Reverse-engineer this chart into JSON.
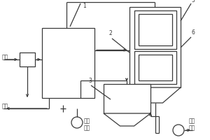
{
  "bg_color": "#ffffff",
  "line_color": "#3a3a3a",
  "lw": 0.9,
  "labels": {
    "waste_gas": "废气",
    "exhaust": "排空",
    "online_analysis": "在线\n分析",
    "production_reuse": "生产\n回用",
    "num1": "1",
    "num2": "2",
    "num3": "3",
    "num5": "5",
    "num6": "6"
  }
}
